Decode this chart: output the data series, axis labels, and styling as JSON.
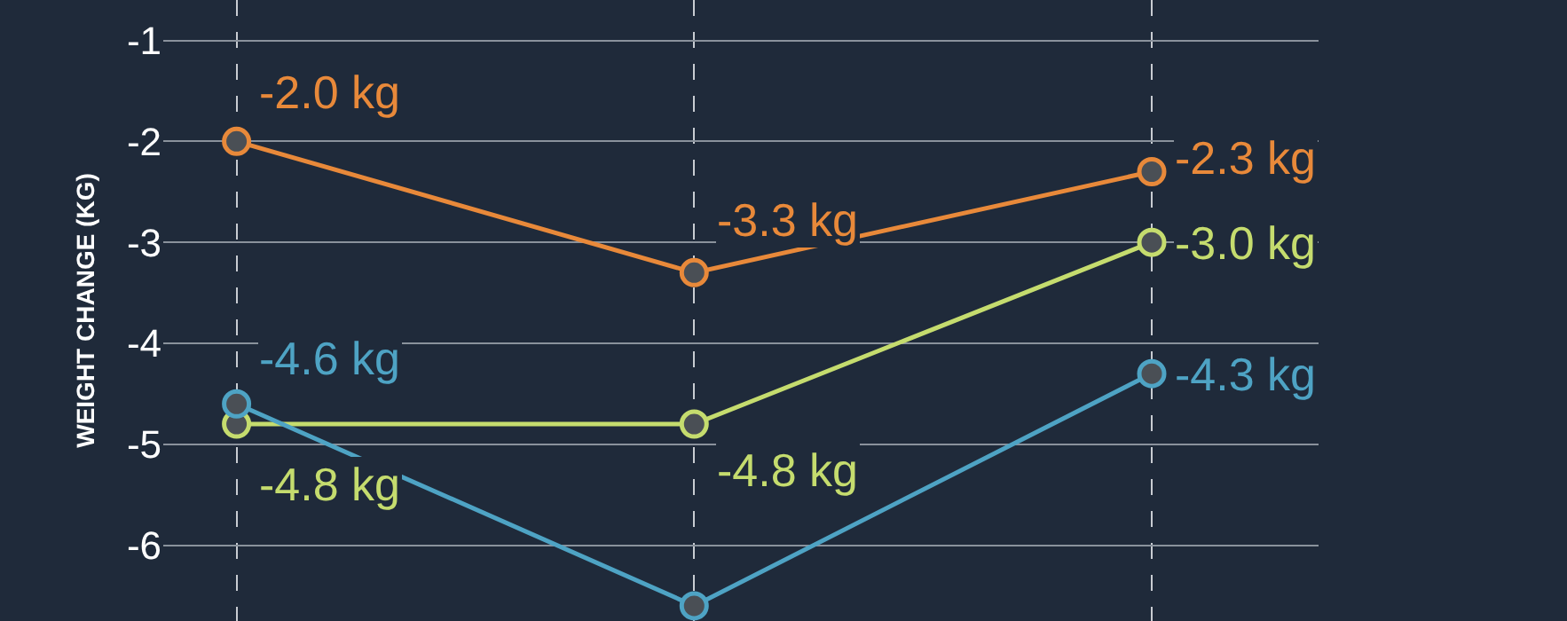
{
  "chart_data": {
    "type": "line",
    "ylabel": "WEIGHT CHANGE (KG)",
    "categories": [
      null,
      null,
      null
    ],
    "series": [
      {
        "color": "#e8893a",
        "values": [
          -2.0,
          -3.3,
          -2.3
        ],
        "value_labels": [
          "-2.0 kg",
          "-3.3 kg",
          "-2.3 kg"
        ]
      },
      {
        "color": "#c5dc6e",
        "values": [
          -4.8,
          -4.8,
          -3.0
        ],
        "value_labels": [
          "-4.8 kg",
          "-4.8 kg",
          "-3.0 kg"
        ]
      },
      {
        "color": "#4ea3c4",
        "values": [
          -4.6,
          -6.6,
          -4.3
        ],
        "value_labels": [
          "-4.6 kg",
          null,
          "-4.3 kg"
        ]
      }
    ],
    "ylim": [
      -6.75,
      -0.6
    ],
    "yticks": [
      -1,
      -2,
      -3,
      -4,
      -5,
      -6
    ],
    "grid": true,
    "marker": "circle",
    "line_style": "solid",
    "tick_labels": "y"
  }
}
